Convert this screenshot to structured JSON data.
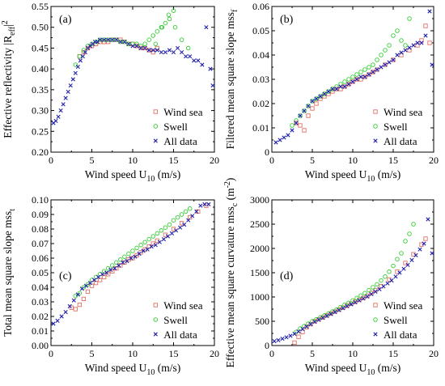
{
  "colors": {
    "wind_sea": "#e07060",
    "swell": "#33cc33",
    "all_data": "#2222aa"
  },
  "chart_data": [
    {
      "type": "scatter",
      "panel_label": "(a)",
      "xlabel": "Wind speed U",
      "xlabel_sub": "10",
      "xlabel_unit": " (m/s)",
      "ylabel": "Effective reflectivity |R",
      "ylabel_sub": "eff",
      "ylabel_tail": "|",
      "ylabel_sup": "2",
      "xlim": [
        0,
        20
      ],
      "ylim": [
        0.2,
        0.55
      ],
      "xticks": [
        "0",
        "5",
        "10",
        "15",
        "20"
      ],
      "yticks": [
        "0.20",
        "0.25",
        "0.30",
        "0.35",
        "0.40",
        "0.45",
        "0.50",
        "0.55"
      ],
      "legend_position": "bottom-right",
      "series": [
        {
          "name": "Wind sea",
          "marker": "square",
          "color": "#e07060",
          "x": [
            3.5,
            4.0,
            4.5,
            5.0,
            5.5,
            6.0,
            6.5,
            7.0,
            7.5,
            8.0,
            8.5,
            9.0,
            9.5,
            10.0,
            10.5,
            11.0,
            11.5,
            12.0,
            12.5,
            13.0
          ],
          "y": [
            0.43,
            0.44,
            0.45,
            0.455,
            0.46,
            0.465,
            0.465,
            0.465,
            0.47,
            0.47,
            0.47,
            0.465,
            0.46,
            0.46,
            0.455,
            0.45,
            0.45,
            0.445,
            0.44,
            0.45
          ]
        },
        {
          "name": "Swell",
          "marker": "circle",
          "color": "#33cc33",
          "x": [
            3.0,
            3.5,
            4.0,
            4.5,
            5.0,
            5.5,
            6.0,
            6.5,
            7.0,
            7.5,
            8.0,
            8.5,
            9.0,
            9.5,
            10.0,
            10.5,
            11.0,
            11.5,
            12.0,
            12.5,
            13.0,
            13.5,
            14.0,
            14.5,
            15.0,
            12.8,
            13.6,
            14.4,
            15.2,
            16.0,
            16.8
          ],
          "y": [
            0.41,
            0.43,
            0.445,
            0.455,
            0.46,
            0.465,
            0.47,
            0.47,
            0.47,
            0.47,
            0.47,
            0.465,
            0.465,
            0.46,
            0.46,
            0.46,
            0.455,
            0.46,
            0.47,
            0.48,
            0.49,
            0.5,
            0.51,
            0.52,
            0.54,
            0.46,
            0.5,
            0.53,
            0.5,
            0.47,
            0.45
          ]
        },
        {
          "name": "All data",
          "marker": "x",
          "color": "#2222aa",
          "x": [
            0.3,
            0.6,
            0.9,
            1.2,
            1.5,
            1.8,
            2.1,
            2.4,
            2.7,
            3.0,
            3.3,
            3.6,
            3.9,
            4.2,
            4.5,
            4.8,
            5.1,
            5.4,
            5.7,
            6.0,
            6.5,
            7.0,
            7.5,
            8.0,
            8.5,
            9.0,
            9.5,
            10.0,
            10.5,
            11.0,
            11.5,
            12.0,
            12.5,
            13.0,
            13.5,
            14.0,
            14.5,
            15.0,
            15.5,
            16.0,
            16.5,
            17.0,
            17.5,
            18.0,
            18.5,
            19.0,
            19.5,
            19.8
          ],
          "y": [
            0.27,
            0.275,
            0.285,
            0.3,
            0.315,
            0.33,
            0.345,
            0.36,
            0.375,
            0.39,
            0.405,
            0.42,
            0.43,
            0.44,
            0.45,
            0.455,
            0.46,
            0.465,
            0.465,
            0.47,
            0.47,
            0.47,
            0.47,
            0.47,
            0.465,
            0.465,
            0.46,
            0.455,
            0.455,
            0.45,
            0.45,
            0.445,
            0.445,
            0.445,
            0.44,
            0.44,
            0.445,
            0.44,
            0.45,
            0.44,
            0.43,
            0.43,
            0.42,
            0.42,
            0.41,
            0.5,
            0.4,
            0.36
          ]
        }
      ]
    },
    {
      "type": "scatter",
      "panel_label": "(b)",
      "xlabel": "Wind speed U",
      "xlabel_sub": "10",
      "xlabel_unit": " (m/s)",
      "ylabel": "Filtered mean square slope mss",
      "ylabel_sub": "f",
      "xlim": [
        0,
        20
      ],
      "ylim": [
        0,
        0.06
      ],
      "xticks": [
        "0",
        "5",
        "10",
        "15",
        "20"
      ],
      "yticks": [
        "0",
        "0.01",
        "0.02",
        "0.03",
        "0.04",
        "0.05",
        "0.06"
      ],
      "legend_position": "bottom-right",
      "series": [
        {
          "name": "Wind sea",
          "marker": "square",
          "color": "#e07060",
          "x": [
            3.0,
            3.5,
            4.0,
            4.5,
            5.0,
            5.5,
            6.0,
            6.5,
            7.0,
            7.5,
            8.0,
            8.5,
            9.0,
            9.5,
            10.0,
            10.5,
            11.0,
            11.5,
            12.0,
            12.5,
            13.0,
            14.0,
            15.0,
            16.0,
            17.0,
            18.0,
            18.5,
            19.0,
            19.5
          ],
          "y": [
            0.012,
            0.011,
            0.009,
            0.015,
            0.018,
            0.02,
            0.022,
            0.023,
            0.024,
            0.025,
            0.026,
            0.026,
            0.027,
            0.028,
            0.029,
            0.03,
            0.03,
            0.031,
            0.032,
            0.033,
            0.034,
            0.036,
            0.038,
            0.04,
            0.042,
            0.044,
            0.046,
            0.052,
            0.045
          ]
        },
        {
          "name": "Swell",
          "marker": "circle",
          "color": "#33cc33",
          "x": [
            2.5,
            3.0,
            3.5,
            4.0,
            4.5,
            5.0,
            5.5,
            6.0,
            6.5,
            7.0,
            7.5,
            8.0,
            8.5,
            9.0,
            9.5,
            10.0,
            10.5,
            11.0,
            11.5,
            12.0,
            12.5,
            13.0,
            13.5,
            14.0,
            14.5,
            15.0,
            15.5,
            16.0,
            16.5,
            17.0
          ],
          "y": [
            0.011,
            0.013,
            0.015,
            0.017,
            0.019,
            0.021,
            0.022,
            0.023,
            0.024,
            0.025,
            0.026,
            0.027,
            0.028,
            0.029,
            0.03,
            0.031,
            0.032,
            0.033,
            0.034,
            0.035,
            0.036,
            0.038,
            0.04,
            0.042,
            0.044,
            0.048,
            0.05,
            0.046,
            0.044,
            0.055
          ]
        },
        {
          "name": "All data",
          "marker": "x",
          "color": "#2222aa",
          "x": [
            0.5,
            1.0,
            1.5,
            2.0,
            2.5,
            3.0,
            3.5,
            4.0,
            4.5,
            5.0,
            5.5,
            6.0,
            6.5,
            7.0,
            7.5,
            8.0,
            8.5,
            9.0,
            9.5,
            10.0,
            10.5,
            11.0,
            11.5,
            12.0,
            12.5,
            13.0,
            13.5,
            14.0,
            14.5,
            15.0,
            15.5,
            16.0,
            16.5,
            17.0,
            17.5,
            18.0,
            18.5,
            19.0,
            19.5,
            19.8
          ],
          "y": [
            0.004,
            0.005,
            0.006,
            0.007,
            0.009,
            0.012,
            0.015,
            0.017,
            0.019,
            0.021,
            0.022,
            0.023,
            0.024,
            0.025,
            0.026,
            0.026,
            0.027,
            0.027,
            0.028,
            0.029,
            0.03,
            0.031,
            0.031,
            0.032,
            0.033,
            0.034,
            0.035,
            0.036,
            0.037,
            0.038,
            0.04,
            0.041,
            0.042,
            0.043,
            0.044,
            0.045,
            0.045,
            0.048,
            0.058,
            0.036
          ]
        }
      ]
    },
    {
      "type": "scatter",
      "panel_label": "(c)",
      "xlabel": "Wind speed U",
      "xlabel_sub": "10",
      "xlabel_unit": " (m/s)",
      "ylabel": "Total mean square slope mss",
      "ylabel_sub": "t",
      "xlim": [
        0,
        20
      ],
      "ylim": [
        0,
        0.1
      ],
      "xticks": [
        "0",
        "5",
        "10",
        "15",
        "20"
      ],
      "yticks": [
        "0.00",
        "0.01",
        "0.02",
        "0.03",
        "0.04",
        "0.05",
        "0.06",
        "0.07",
        "0.08",
        "0.09",
        "0.10"
      ],
      "legend_position": "bottom-right",
      "series": [
        {
          "name": "Wind sea",
          "marker": "square",
          "color": "#e07060",
          "x": [
            2.5,
            3.0,
            3.5,
            4.0,
            4.5,
            5.0,
            5.5,
            6.0,
            6.5,
            7.0,
            7.5,
            8.0,
            8.5,
            9.0,
            9.5,
            10.0,
            10.5,
            11.0,
            11.5,
            12.0,
            12.5,
            13.0,
            14.0,
            15.0,
            16.0,
            17.0,
            18.0,
            19.0
          ],
          "y": [
            0.026,
            0.025,
            0.028,
            0.032,
            0.037,
            0.041,
            0.043,
            0.045,
            0.047,
            0.049,
            0.051,
            0.053,
            0.055,
            0.057,
            0.059,
            0.06,
            0.062,
            0.064,
            0.066,
            0.068,
            0.07,
            0.072,
            0.076,
            0.08,
            0.084,
            0.088,
            0.092,
            0.096
          ]
        },
        {
          "name": "Swell",
          "marker": "circle",
          "color": "#33cc33",
          "x": [
            3.0,
            3.5,
            4.0,
            4.5,
            5.0,
            5.5,
            6.0,
            6.5,
            7.0,
            7.5,
            8.0,
            8.5,
            9.0,
            9.5,
            10.0,
            10.5,
            11.0,
            11.5,
            12.0,
            12.5,
            13.0,
            13.5,
            14.0,
            14.5,
            15.0,
            15.5,
            16.0,
            16.5,
            17.0
          ],
          "y": [
            0.034,
            0.036,
            0.04,
            0.042,
            0.045,
            0.047,
            0.049,
            0.051,
            0.053,
            0.055,
            0.057,
            0.059,
            0.061,
            0.063,
            0.065,
            0.067,
            0.069,
            0.071,
            0.073,
            0.075,
            0.077,
            0.079,
            0.081,
            0.083,
            0.086,
            0.088,
            0.09,
            0.092,
            0.094
          ]
        },
        {
          "name": "All data",
          "marker": "x",
          "color": "#2222aa",
          "x": [
            0.3,
            0.8,
            1.3,
            1.8,
            2.3,
            2.8,
            3.3,
            3.8,
            4.3,
            4.8,
            5.3,
            5.8,
            6.3,
            6.8,
            7.3,
            7.8,
            8.3,
            8.8,
            9.3,
            9.8,
            10.3,
            10.8,
            11.3,
            11.8,
            12.3,
            12.8,
            13.3,
            13.8,
            14.3,
            14.8,
            15.3,
            15.8,
            16.3,
            16.8,
            17.3,
            17.8,
            18.3,
            18.8,
            19.3
          ],
          "y": [
            0.015,
            0.017,
            0.02,
            0.023,
            0.027,
            0.031,
            0.035,
            0.039,
            0.041,
            0.043,
            0.045,
            0.047,
            0.049,
            0.05,
            0.052,
            0.053,
            0.055,
            0.057,
            0.058,
            0.06,
            0.061,
            0.063,
            0.065,
            0.066,
            0.068,
            0.069,
            0.071,
            0.073,
            0.075,
            0.077,
            0.079,
            0.081,
            0.083,
            0.086,
            0.089,
            0.092,
            0.096,
            0.097,
            0.097
          ]
        }
      ]
    },
    {
      "type": "scatter",
      "panel_label": "(d)",
      "xlabel": "Wind speed U",
      "xlabel_sub": "10",
      "xlabel_unit": " (m/s)",
      "ylabel": "Effective mean square curvature mss",
      "ylabel_sub": "c",
      "ylabel_tail": " (m",
      "ylabel_sup": "-2",
      "ylabel_end": ")",
      "xlim": [
        0,
        20
      ],
      "ylim": [
        0,
        3000
      ],
      "xticks": [
        "0",
        "5",
        "10",
        "15",
        "20"
      ],
      "yticks": [
        "0",
        "500",
        "1000",
        "1500",
        "2000",
        "2500",
        "3000"
      ],
      "legend_position": "bottom-right",
      "series": [
        {
          "name": "Wind sea",
          "marker": "square",
          "color": "#e07060",
          "x": [
            2.8,
            3.3,
            3.8,
            4.3,
            4.8,
            5.3,
            5.8,
            6.3,
            6.8,
            7.3,
            7.8,
            8.3,
            8.8,
            9.3,
            9.8,
            10.3,
            10.8,
            11.3,
            11.8,
            12.3,
            12.8,
            13.5,
            14.5,
            15.5,
            16.5,
            17.5,
            18.5,
            19.0
          ],
          "y": [
            60,
            180,
            280,
            380,
            440,
            500,
            540,
            580,
            620,
            660,
            700,
            740,
            780,
            820,
            860,
            900,
            940,
            980,
            1020,
            1080,
            1140,
            1220,
            1360,
            1520,
            1700,
            1880,
            2080,
            2200
          ]
        },
        {
          "name": "Swell",
          "marker": "circle",
          "color": "#33cc33",
          "x": [
            3.0,
            3.5,
            4.0,
            4.5,
            5.0,
            5.5,
            6.0,
            6.5,
            7.0,
            7.5,
            8.0,
            8.5,
            9.0,
            9.5,
            10.0,
            10.5,
            11.0,
            11.5,
            12.0,
            12.5,
            13.0,
            13.5,
            14.0,
            14.5,
            15.0,
            15.5,
            16.0,
            16.5,
            17.0,
            17.5
          ],
          "y": [
            280,
            350,
            400,
            450,
            500,
            540,
            580,
            620,
            660,
            700,
            740,
            790,
            840,
            880,
            930,
            980,
            1030,
            1080,
            1140,
            1200,
            1260,
            1340,
            1420,
            1520,
            1640,
            1780,
            1900,
            2150,
            2300,
            2500
          ]
        },
        {
          "name": "All data",
          "marker": "x",
          "color": "#2222aa",
          "x": [
            0.3,
            0.8,
            1.3,
            1.8,
            2.3,
            2.8,
            3.3,
            3.8,
            4.3,
            4.8,
            5.3,
            5.8,
            6.3,
            6.8,
            7.3,
            7.8,
            8.3,
            8.8,
            9.3,
            9.8,
            10.3,
            10.8,
            11.3,
            11.8,
            12.3,
            12.8,
            13.3,
            13.8,
            14.3,
            14.8,
            15.3,
            15.8,
            16.3,
            16.8,
            17.3,
            17.8,
            18.3,
            18.8,
            19.3,
            19.8
          ],
          "y": [
            90,
            110,
            140,
            170,
            200,
            240,
            290,
            340,
            390,
            440,
            490,
            530,
            570,
            610,
            650,
            690,
            730,
            770,
            810,
            850,
            890,
            930,
            970,
            1010,
            1060,
            1110,
            1160,
            1220,
            1280,
            1340,
            1420,
            1500,
            1580,
            1660,
            1760,
            1860,
            1980,
            2100,
            2600,
            1900
          ]
        }
      ]
    }
  ]
}
